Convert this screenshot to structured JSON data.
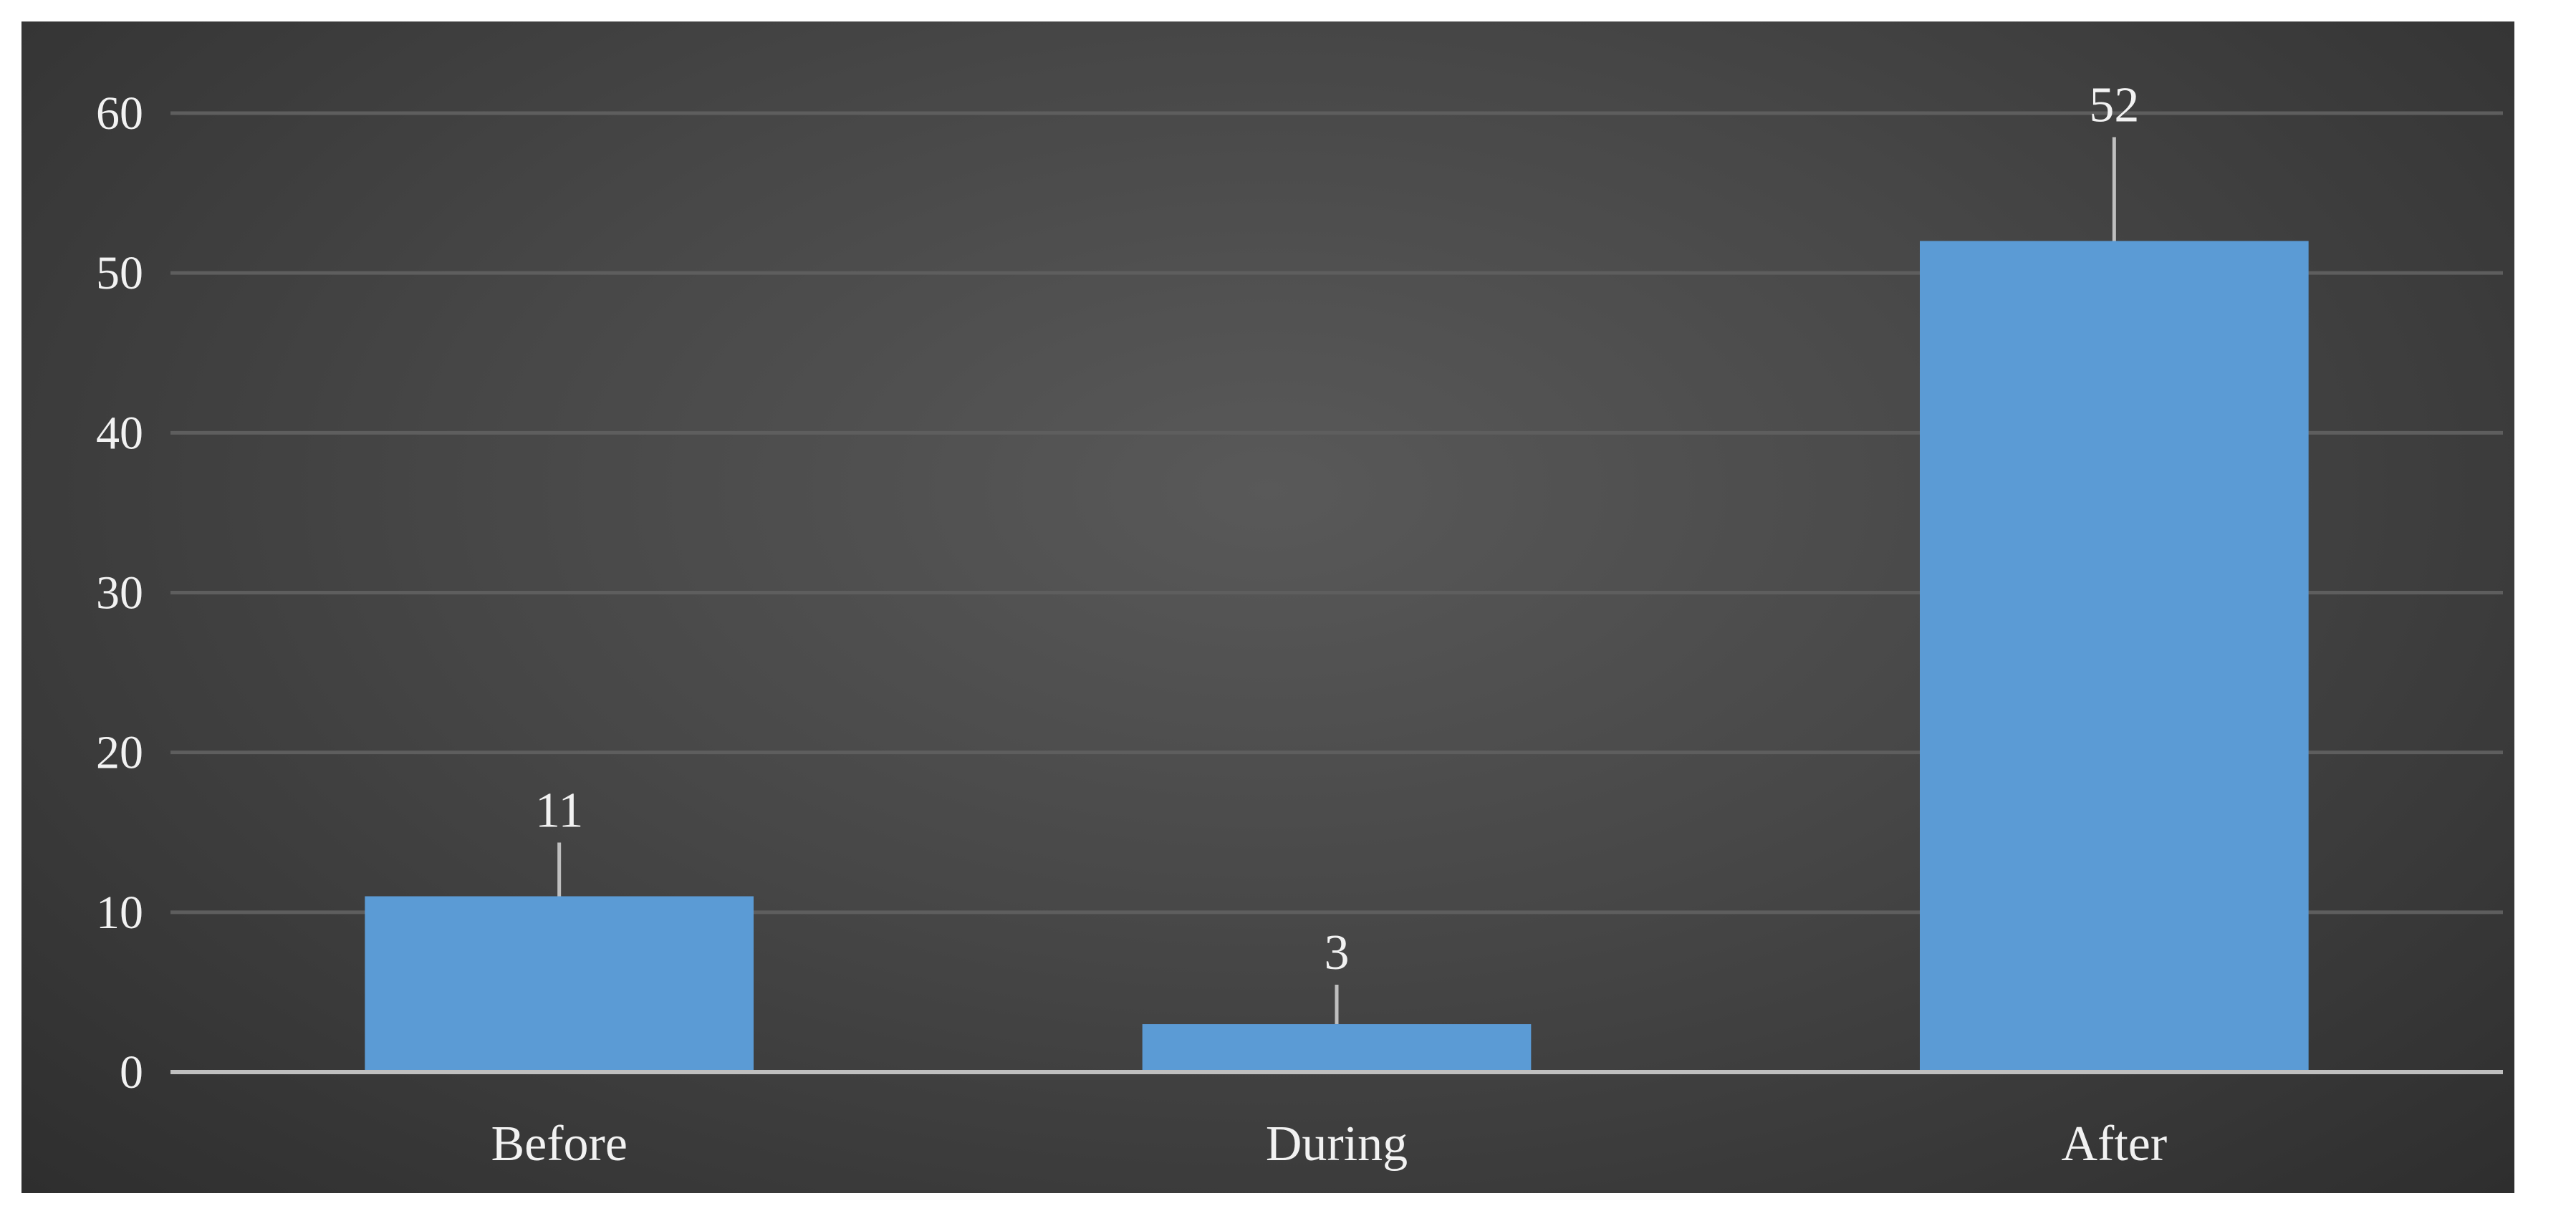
{
  "chart_data": {
    "type": "bar",
    "categories": [
      "Before",
      "During",
      "After"
    ],
    "values": [
      11,
      3,
      52
    ],
    "ylim": [
      0,
      60
    ],
    "yticks": [
      0,
      10,
      20,
      30,
      40,
      50,
      60
    ],
    "grid": true,
    "title": "",
    "xlabel": "",
    "ylabel": "",
    "data_labels": [
      "11",
      "3",
      "52"
    ],
    "colors": {
      "bar": "#5b9bd5",
      "grid": "#5e5e5e",
      "axis": "#bfbfbf",
      "leader": "#bfbfbf",
      "text": "#f2f2f2"
    }
  }
}
